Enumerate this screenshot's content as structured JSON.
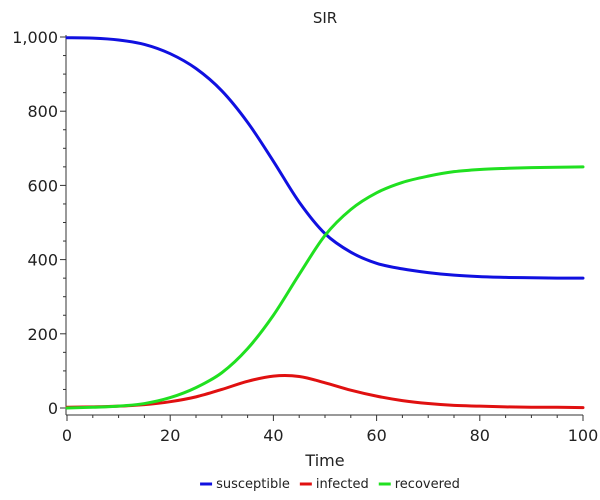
{
  "chart_data": {
    "type": "line",
    "title": "SIR",
    "xlabel": "Time",
    "ylabel": "",
    "xlim": [
      0,
      100
    ],
    "ylim": [
      0,
      1000
    ],
    "grid": false,
    "legend_position": "bottom",
    "x_ticks": [
      0,
      20,
      40,
      60,
      80,
      100
    ],
    "x_tick_labels": [
      "0",
      "20",
      "40",
      "60",
      "80",
      "100"
    ],
    "y_ticks": [
      0,
      200,
      400,
      600,
      800,
      1000
    ],
    "y_tick_labels": [
      "0",
      "200",
      "400",
      "600",
      "800",
      "1,000"
    ],
    "series": [
      {
        "name": "susceptible",
        "color": "#1010e0",
        "x": [
          0,
          5,
          10,
          15,
          20,
          25,
          30,
          35,
          40,
          45,
          50,
          55,
          60,
          65,
          70,
          75,
          80,
          85,
          90,
          95,
          100
        ],
        "y": [
          998,
          997,
          992,
          980,
          955,
          915,
          855,
          770,
          665,
          555,
          470,
          420,
          390,
          375,
          365,
          358,
          354,
          352,
          351,
          350,
          350
        ]
      },
      {
        "name": "infected",
        "color": "#e01010",
        "x": [
          0,
          5,
          10,
          15,
          20,
          25,
          30,
          35,
          40,
          45,
          50,
          55,
          60,
          65,
          70,
          75,
          80,
          85,
          90,
          95,
          100
        ],
        "y": [
          2,
          3,
          5,
          9,
          17,
          30,
          50,
          72,
          86,
          85,
          68,
          48,
          32,
          20,
          12,
          7,
          5,
          3,
          2,
          2,
          1
        ]
      },
      {
        "name": "recovered",
        "color": "#20e020",
        "x": [
          0,
          5,
          10,
          15,
          20,
          25,
          30,
          35,
          40,
          45,
          50,
          55,
          60,
          65,
          70,
          75,
          80,
          85,
          90,
          95,
          100
        ],
        "y": [
          0,
          2,
          5,
          12,
          28,
          55,
          95,
          160,
          250,
          360,
          465,
          535,
          580,
          608,
          625,
          637,
          643,
          646,
          648,
          649,
          650
        ]
      }
    ]
  }
}
